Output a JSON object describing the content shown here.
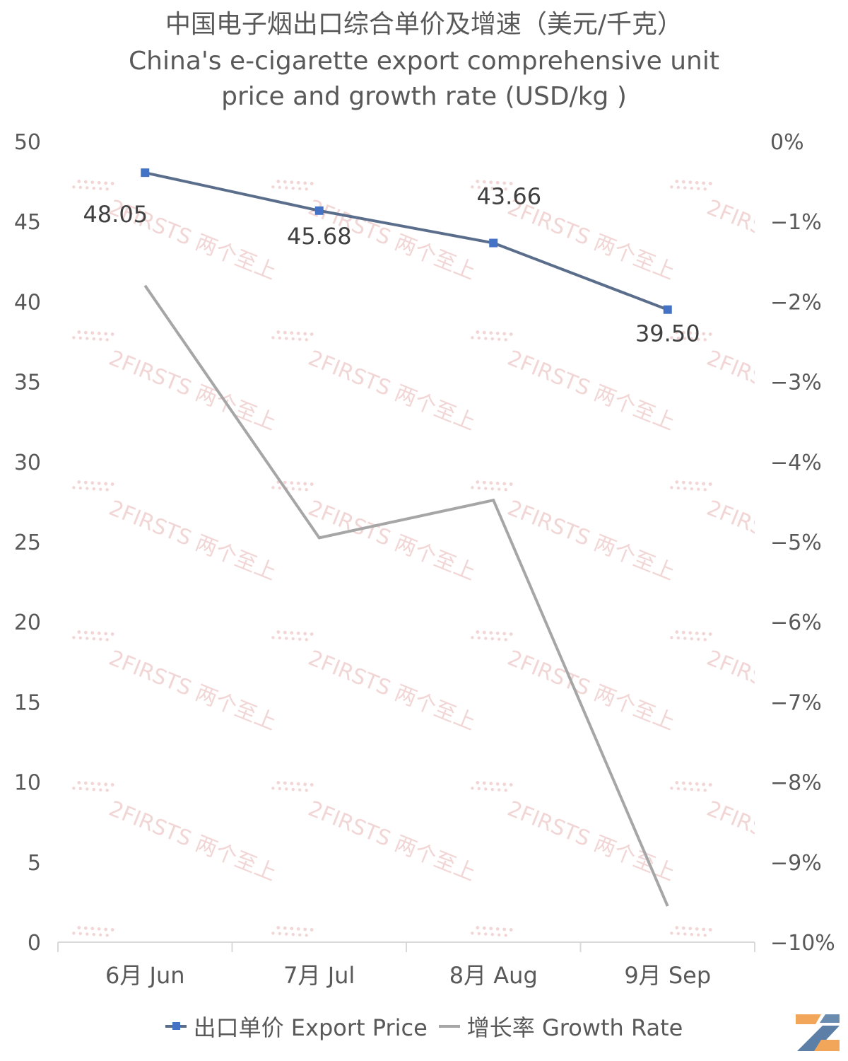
{
  "chart_data": {
    "type": "line",
    "title": "中国电子烟出口综合单价及增速（美元/千克）",
    "subtitle_line1": "China's e-cigarette export comprehensive unit",
    "subtitle_line2": "price and growth rate (USD/kg )",
    "categories": [
      "6月 Jun",
      "7月 Jul",
      "8月 Aug",
      "9月 Sep"
    ],
    "left_axis": {
      "ylim": [
        0,
        50
      ],
      "ticks": [
        0,
        5,
        10,
        15,
        20,
        25,
        30,
        35,
        40,
        45,
        50
      ]
    },
    "right_axis": {
      "ylim": [
        -10,
        0
      ],
      "ticks": [
        "0%",
        "−1%",
        "−2%",
        "−3%",
        "−4%",
        "−5%",
        "−6%",
        "−7%",
        "−8%",
        "−9%",
        "−10%"
      ]
    },
    "series": [
      {
        "name": "出口单价 Export Price",
        "axis": "left",
        "values": [
          48.05,
          45.68,
          43.66,
          39.5
        ],
        "labels": [
          "48.05",
          "45.68",
          "43.66",
          "39.50"
        ],
        "color": "#4472c4",
        "line_color": "#5a6e8c"
      },
      {
        "name": "增长率 Growth Rate",
        "axis": "right",
        "values": [
          -1.8,
          -4.95,
          -4.48,
          -9.55
        ],
        "color": "#a6a6a6"
      }
    ],
    "grid": false,
    "legend": "bottom"
  },
  "watermark": "2FIRSTS 两个至上",
  "watermark_color": "#e8b4b4"
}
